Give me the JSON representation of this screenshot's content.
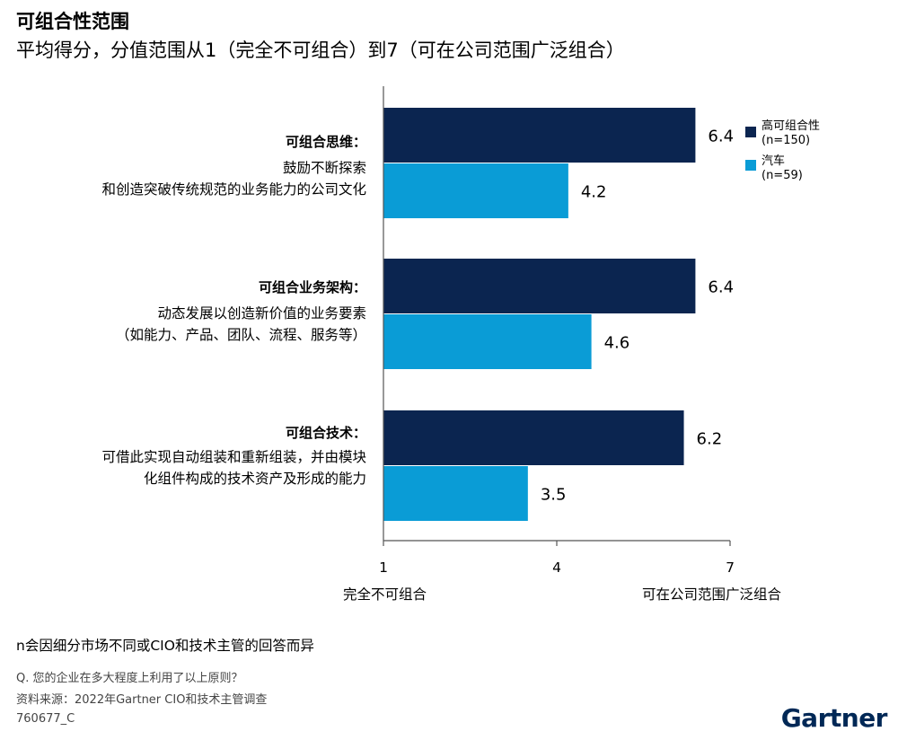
{
  "header": {
    "title": "可组合性范围",
    "subtitle": "平均得分，分值范围从1（完全不可组合）到7（可在公司范围广泛组合）"
  },
  "colors": {
    "high": "#0b2550",
    "auto": "#0a9cd6",
    "axis": "#555555"
  },
  "chart_data": {
    "type": "bar",
    "orientation": "horizontal",
    "categories": [
      {
        "name": "可组合思维：",
        "desc": [
          "鼓励不断探索",
          "和创造突破传统规范的业务能力的公司文化"
        ]
      },
      {
        "name": "可组合业务架构：",
        "desc": [
          "动态发展以创造新价值的业务要素",
          "（如能力、产品、团队、流程、服务等）"
        ]
      },
      {
        "name": "可组合技术：",
        "desc": [
          "可借此实现自动组装和重新组装，并由模块",
          "化组件构成的技术资产及形成的能力"
        ]
      }
    ],
    "series": [
      {
        "name": "高可组合性",
        "n": "(n=150)",
        "values": [
          6.4,
          6.4,
          6.2
        ],
        "labels": [
          "6.4",
          "6.4",
          "6.2"
        ],
        "color": "#0b2550"
      },
      {
        "name": "汽车",
        "n": "(n=59)",
        "values": [
          4.2,
          4.6,
          3.5
        ],
        "labels": [
          "4.2",
          "4.6",
          "3.5"
        ],
        "color": "#0a9cd6"
      }
    ],
    "xlim": [
      1,
      7
    ],
    "xticks": [
      1,
      4,
      7
    ],
    "xtick_labels": [
      "1",
      "4",
      "7"
    ],
    "x_low_label": "完全不可组合",
    "x_high_label": "可在公司范围广泛组合",
    "legend_position": "top-right"
  },
  "note": "n会因细分市场不同或CIO和技术主管的回答而异",
  "footer": {
    "question": "Q. 您的企业在多大程度上利用了以上原则？",
    "source": "资料来源：2022年Gartner CIO和技术主管调查",
    "id": "760677_C"
  },
  "logo": "Gartner"
}
